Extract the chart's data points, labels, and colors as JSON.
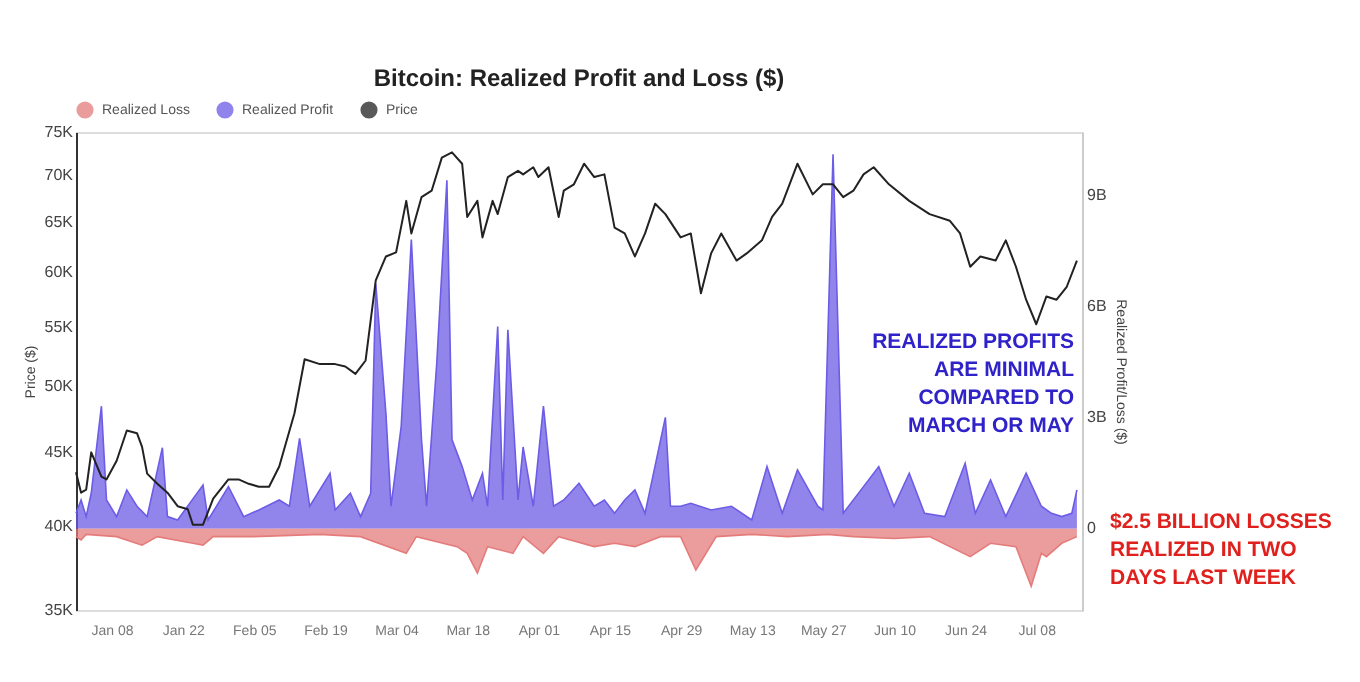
{
  "chart_data": {
    "type": "line",
    "title": "Bitcoin: Realized Profit and Loss ($)",
    "ylabel": "Price ($)",
    "y2label": "Realized Profit/Loss ($)",
    "log": "y",
    "legend": "top",
    "xlim": [
      "--01-01",
      "--07-17"
    ],
    "xticks": [
      {
        "value": "--01-08",
        "label": "Jan 08"
      },
      {
        "value": "--01-22",
        "label": "Jan 22"
      },
      {
        "value": "--02-05",
        "label": "Feb 05"
      },
      {
        "value": "--02-19",
        "label": "Feb 19"
      },
      {
        "value": "--03-04",
        "label": "Mar 04"
      },
      {
        "value": "--03-18",
        "label": "Mar 18"
      },
      {
        "value": "--04-01",
        "label": "Apr 01"
      },
      {
        "value": "--04-15",
        "label": "Apr 15"
      },
      {
        "value": "--04-29",
        "label": "Apr 29"
      },
      {
        "value": "--05-13",
        "label": "May 13"
      },
      {
        "value": "--05-27",
        "label": "May 27"
      },
      {
        "value": "--06-10",
        "label": "Jun 10"
      },
      {
        "value": "--06-24",
        "label": "Jun 24"
      },
      {
        "value": "--07-08",
        "label": "Jul 08"
      }
    ],
    "ylim": [
      35000,
      75000
    ],
    "yticks": [
      {
        "value": 35000,
        "label": "35K"
      },
      {
        "value": 40000,
        "label": "40K"
      },
      {
        "value": 45000,
        "label": "45K"
      },
      {
        "value": 50000,
        "label": "50K"
      },
      {
        "value": 55000,
        "label": "55K"
      },
      {
        "value": 60000,
        "label": "60K"
      },
      {
        "value": 65000,
        "label": "65K"
      },
      {
        "value": 70000,
        "label": "70K"
      },
      {
        "value": 75000,
        "label": "75K"
      }
    ],
    "y2lim": [
      -2.2,
      10.7
    ],
    "y2ticks": [
      {
        "value": 0,
        "label": "0"
      },
      {
        "value": 3,
        "label": "3B"
      },
      {
        "value": 6,
        "label": "6B"
      },
      {
        "value": 9,
        "label": "9B"
      }
    ],
    "annotations": [
      "REALIZED PROFITS\nARE MINIMAL\nCOMPARED TO\nMARCH OR MAY",
      "$2.5 BILLION LOSSES\nREALIZED IN TWO\nDAYS LAST WEEK"
    ],
    "series": [
      {
        "name": "Realized Loss",
        "type": "area",
        "axis": "y2",
        "color": "#e47c7c",
        "x": [
          "--01-01",
          "--01-02",
          "--01-03",
          "--01-09",
          "--01-14",
          "--01-17",
          "--01-24",
          "--01-26",
          "--01-28",
          "--02-05",
          "--02-18",
          "--02-26",
          "--03-06",
          "--03-08",
          "--03-16",
          "--03-18",
          "--03-20",
          "--03-22",
          "--03-27",
          "--03-29",
          "--04-02",
          "--04-05",
          "--04-12",
          "--04-16",
          "--04-20",
          "--04-25",
          "--04-29",
          "--05-02",
          "--05-06",
          "--05-13",
          "--05-20",
          "--05-28",
          "--06-02",
          "--06-10",
          "--06-17",
          "--06-25",
          "--06-29",
          "--07-04",
          "--07-07",
          "--07-09",
          "--07-10",
          "--07-13",
          "--07-16"
        ],
        "values": [
          -0.22,
          -0.31,
          -0.16,
          -0.22,
          -0.45,
          -0.22,
          -0.4,
          -0.45,
          -0.22,
          -0.22,
          -0.16,
          -0.22,
          -0.67,
          -0.22,
          -0.49,
          -0.67,
          -1.2,
          -0.49,
          -0.67,
          -0.22,
          -0.67,
          -0.22,
          -0.49,
          -0.4,
          -0.49,
          -0.22,
          -0.22,
          -1.12,
          -0.22,
          -0.16,
          -0.22,
          -0.16,
          -0.22,
          -0.27,
          -0.22,
          -0.76,
          -0.4,
          -0.49,
          -1.56,
          -0.67,
          -0.76,
          -0.4,
          -0.22
        ]
      },
      {
        "name": "Realized Profit",
        "type": "area",
        "axis": "y2",
        "color": "#6c5ce6",
        "x": [
          "--01-01",
          "--01-02",
          "--01-03",
          "--01-04",
          "--01-06",
          "--01-07",
          "--01-09",
          "--01-11",
          "--01-13",
          "--01-15",
          "--01-18",
          "--01-19",
          "--01-21",
          "--01-26",
          "--01-27",
          "--01-31",
          "--02-03",
          "--02-06",
          "--02-10",
          "--02-12",
          "--02-14",
          "--02-16",
          "--02-20",
          "--02-21",
          "--02-24",
          "--02-26",
          "--02-28",
          "--02-29",
          "--03-02",
          "--03-03",
          "--03-05",
          "--03-07",
          "--03-09",
          "--03-10",
          "--03-12",
          "--03-14",
          "--03-15",
          "--03-17",
          "--03-19",
          "--03-21",
          "--03-22",
          "--03-24",
          "--03-25",
          "--03-26",
          "--03-28",
          "--03-29",
          "--03-31",
          "--04-02",
          "--04-04",
          "--04-06",
          "--04-09",
          "--04-12",
          "--04-14",
          "--04-16",
          "--04-18",
          "--04-20",
          "--04-22",
          "--04-26",
          "--04-27",
          "--04-29",
          "--05-01",
          "--05-05",
          "--05-09",
          "--05-13",
          "--05-16",
          "--05-19",
          "--05-22",
          "--05-26",
          "--05-27",
          "--05-29",
          "--05-31",
          "--06-04",
          "--06-07",
          "--06-10",
          "--06-13",
          "--06-16",
          "--06-20",
          "--06-24",
          "--06-26",
          "--06-29",
          "--07-02",
          "--07-06",
          "--07-09",
          "--07-11",
          "--07-13",
          "--07-15",
          "--07-16"
        ],
        "values": [
          0.41,
          0.77,
          0.32,
          0.95,
          3.3,
          0.77,
          0.32,
          1.04,
          0.6,
          0.32,
          2.18,
          0.32,
          0.23,
          1.17,
          0.23,
          1.13,
          0.32,
          0.5,
          0.77,
          0.6,
          2.43,
          0.6,
          1.49,
          0.5,
          0.95,
          0.32,
          0.95,
          6.6,
          3.1,
          0.6,
          2.75,
          7.8,
          2.4,
          0.6,
          4.46,
          9.4,
          2.4,
          1.67,
          0.77,
          1.49,
          0.6,
          5.45,
          0.77,
          5.36,
          0.77,
          2.2,
          0.6,
          3.3,
          0.6,
          0.77,
          1.22,
          0.6,
          0.77,
          0.41,
          0.77,
          1.04,
          0.41,
          3.0,
          0.6,
          0.6,
          0.68,
          0.5,
          0.6,
          0.23,
          1.67,
          0.41,
          1.58,
          0.6,
          0.5,
          10.1,
          0.41,
          1.13,
          1.67,
          0.6,
          1.49,
          0.41,
          0.32,
          1.76,
          0.41,
          1.31,
          0.32,
          1.49,
          0.6,
          0.41,
          0.32,
          0.41,
          1.04
        ]
      },
      {
        "name": "Price",
        "color": "#222222",
        "x": [
          "--01-01",
          "--01-02",
          "--01-03",
          "--01-04",
          "--01-06",
          "--01-07",
          "--01-09",
          "--01-11",
          "--01-13",
          "--01-14",
          "--01-15",
          "--01-17",
          "--01-19",
          "--01-21",
          "--01-23",
          "--01-24",
          "--01-26",
          "--01-28",
          "--01-31",
          "--02-02",
          "--02-04",
          "--02-06",
          "--02-08",
          "--02-10",
          "--02-13",
          "--02-15",
          "--02-18",
          "--02-21",
          "--02-23",
          "--02-25",
          "--02-27",
          "--02-29",
          "--03-02",
          "--03-04",
          "--03-06",
          "--03-07",
          "--03-09",
          "--03-11",
          "--03-13",
          "--03-15",
          "--03-17",
          "--03-18",
          "--03-20",
          "--03-21",
          "--03-23",
          "--03-24",
          "--03-26",
          "--03-28",
          "--03-29",
          "--03-31",
          "--04-01",
          "--04-03",
          "--04-05",
          "--04-06",
          "--04-08",
          "--04-10",
          "--04-12",
          "--04-14",
          "--04-16",
          "--04-18",
          "--04-20",
          "--04-22",
          "--04-24",
          "--04-26",
          "--04-29",
          "--05-01",
          "--05-03",
          "--05-05",
          "--05-07",
          "--05-10",
          "--05-12",
          "--05-15",
          "--05-17",
          "--05-19",
          "--05-22",
          "--05-25",
          "--05-27",
          "--05-29",
          "--05-31",
          "--06-02",
          "--06-04",
          "--06-06",
          "--06-09",
          "--06-13",
          "--06-17",
          "--06-21",
          "--06-23",
          "--06-25",
          "--06-27",
          "--06-30",
          "--07-02",
          "--07-04",
          "--07-06",
          "--07-08",
          "--07-10",
          "--07-12",
          "--07-14",
          "--07-16"
        ],
        "values": [
          43600,
          42200,
          42400,
          45000,
          43300,
          43100,
          44400,
          46600,
          46400,
          45400,
          43500,
          42800,
          42200,
          41300,
          41100,
          40100,
          40100,
          41800,
          43100,
          43100,
          42800,
          42600,
          42600,
          44000,
          47900,
          52200,
          51800,
          51800,
          51600,
          51000,
          52100,
          59200,
          61500,
          61900,
          67200,
          63800,
          67600,
          68300,
          72000,
          72600,
          71300,
          65500,
          67200,
          63400,
          67200,
          65800,
          69800,
          70500,
          70100,
          70900,
          69800,
          70900,
          65500,
          68300,
          69000,
          71300,
          69800,
          70100,
          64400,
          63800,
          61500,
          63800,
          66900,
          65800,
          63400,
          63800,
          58000,
          61800,
          63800,
          61100,
          61800,
          63100,
          65500,
          66900,
          71300,
          67900,
          69000,
          69000,
          67600,
          68300,
          70100,
          70900,
          69000,
          67200,
          65800,
          65100,
          63800,
          60500,
          61500,
          61100,
          63100,
          60500,
          57400,
          55200,
          57700,
          57400,
          58600,
          61100
        ]
      }
    ]
  }
}
